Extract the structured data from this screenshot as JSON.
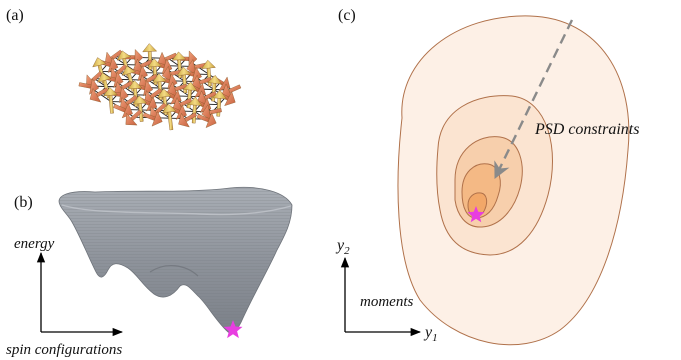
{
  "panels": {
    "a": {
      "label": "(a)"
    },
    "b": {
      "label": "(b)",
      "y_axis_label": "energy",
      "x_axis_label": "spin configurations"
    },
    "c": {
      "label": "(c)",
      "arrow_label": "PSD constraints",
      "region_label": "moments",
      "y_axis_main": "y",
      "y_axis_sub": "2",
      "x_axis_main": "y",
      "x_axis_sub": "1"
    }
  },
  "colors": {
    "star": "#e83de0",
    "surface": "#8c9199",
    "spin_yellow": "#e8c96a",
    "spin_orange": "#e0825f",
    "contour_outer": "#fdf0e6",
    "contour_inner": "#f2a768",
    "contour_stroke": "#b0714a"
  },
  "icons": [
    "spin-arrow-icon",
    "minimum-star-icon"
  ]
}
